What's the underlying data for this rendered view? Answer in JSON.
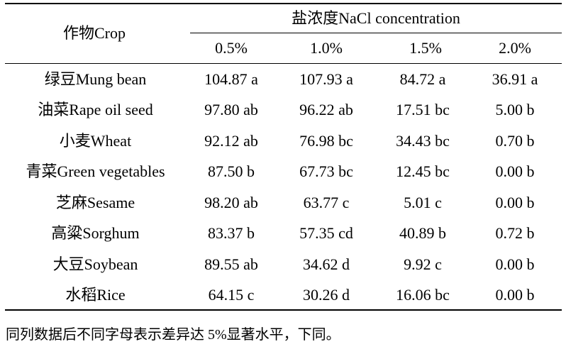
{
  "header": {
    "crop": "作物Crop",
    "group": "盐浓度NaCl concentration",
    "concentrations": [
      "0.5%",
      "1.0%",
      "1.5%",
      "2.0%"
    ]
  },
  "rows": [
    {
      "crop": "绿豆Mung bean",
      "v": [
        "104.87 a",
        "107.93 a",
        "84.72 a",
        "36.91 a"
      ]
    },
    {
      "crop": "油菜Rape oil seed",
      "v": [
        "97.80 ab",
        "96.22 ab",
        "17.51 bc",
        "5.00 b"
      ]
    },
    {
      "crop": "小麦Wheat",
      "v": [
        "92.12 ab",
        "76.98 bc",
        "34.43 bc",
        "0.70 b"
      ]
    },
    {
      "crop": "青菜Green vegetables",
      "v": [
        "87.50 b",
        "67.73 bc",
        "12.45 bc",
        "0.00 b"
      ]
    },
    {
      "crop": "芝麻Sesame",
      "v": [
        "98.20 ab",
        "63.77 c",
        "5.01 c",
        "0.00 b"
      ]
    },
    {
      "crop": "高粱Sorghum",
      "v": [
        "83.37 b",
        "57.35 cd",
        "40.89 b",
        "0.72 b"
      ]
    },
    {
      "crop": "大豆Soybean",
      "v": [
        "89.55 ab",
        "34.62 d",
        "9.92 c",
        "0.00 b"
      ]
    },
    {
      "crop": "水稻Rice",
      "v": [
        "64.15 c",
        "30.26 d",
        "16.06 bc",
        "0.00 b"
      ]
    }
  ],
  "footnote": "同列数据后不同字母表示差异达 5%显著水平，下同。"
}
